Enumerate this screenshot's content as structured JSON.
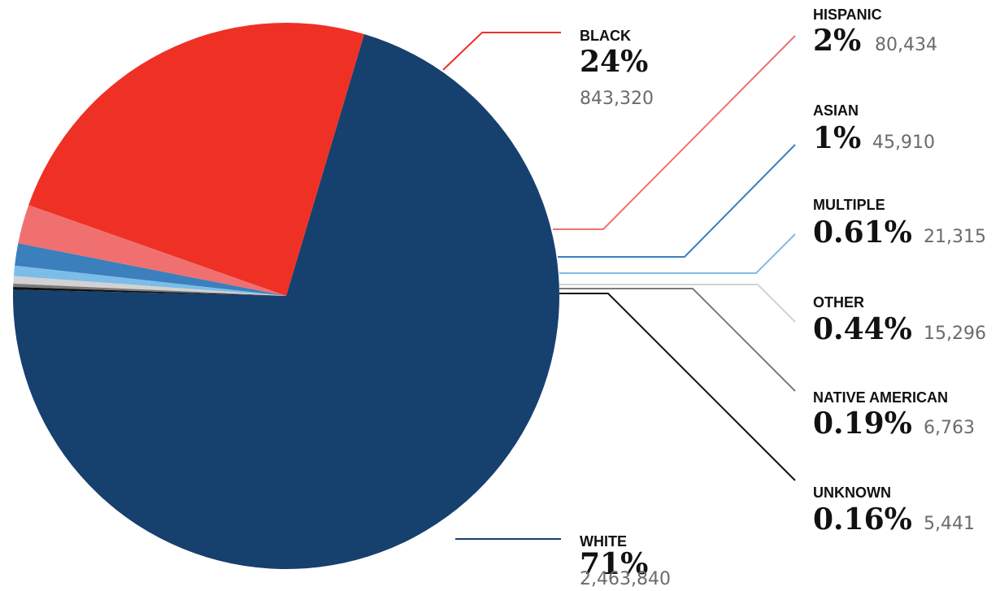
{
  "chart_data": {
    "type": "pie",
    "title": "",
    "slices": [
      {
        "label": "WHITE",
        "percent_label": "71%",
        "count_label": "2,463,840",
        "value": 2463840,
        "color": "#16406e"
      },
      {
        "label": "BLACK",
        "percent_label": "24%",
        "count_label": "843,320",
        "value": 843320,
        "color": "#ee3124"
      },
      {
        "label": "HISPANIC",
        "percent_label": "2%",
        "count_label": "80,434",
        "value": 80434,
        "color": "#f07070"
      },
      {
        "label": "ASIAN",
        "percent_label": "1%",
        "count_label": "45,910",
        "value": 45910,
        "color": "#3b7fbd"
      },
      {
        "label": "MULTIPLE",
        "percent_label": "0.61%",
        "count_label": "21,315",
        "value": 21315,
        "color": "#7bbde8"
      },
      {
        "label": "OTHER",
        "percent_label": "0.44%",
        "count_label": "15,296",
        "value": 15296,
        "color": "#d2d2d2"
      },
      {
        "label": "NATIVE AMERICAN",
        "percent_label": "0.19%",
        "count_label": "6,763",
        "value": 6763,
        "color": "#7a7a7a"
      },
      {
        "label": "UNKNOWN",
        "percent_label": "0.16%",
        "count_label": "5,441",
        "value": 5441,
        "color": "#111111"
      }
    ]
  }
}
